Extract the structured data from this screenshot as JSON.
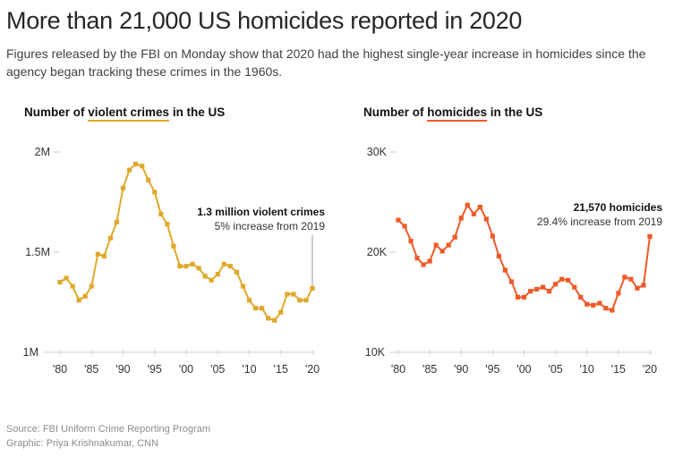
{
  "headline": "More than 21,000 US homicides reported in 2020",
  "subtitle": "Figures released by the FBI on Monday show that 2020 had the highest single-year increase in homicides since the agency began tracking these crimes in the 1960s.",
  "footer": {
    "source": "Source: FBI Uniform Crime Reporting Program",
    "graphic": "Graphic: Priya Krishnakumar, CNN"
  },
  "chart_data": [
    {
      "type": "line",
      "id": "violent",
      "title_parts": [
        "Number of ",
        "violent crimes",
        " in the US"
      ],
      "title": "Number of violent crimes in the US",
      "color": "#e0a92b",
      "xlabel": "",
      "ylabel": "",
      "ylim": [
        1000000,
        2000000
      ],
      "yticks": [
        {
          "value": 2000000,
          "label": "2M"
        },
        {
          "value": 1500000,
          "label": "1.5M"
        },
        {
          "value": 1000000,
          "label": "1M"
        }
      ],
      "xticks": [
        {
          "value": 1980,
          "label": "'80"
        },
        {
          "value": 1985,
          "label": "'85"
        },
        {
          "value": 1990,
          "label": "'90"
        },
        {
          "value": 1995,
          "label": "'95"
        },
        {
          "value": 2000,
          "label": "'00"
        },
        {
          "value": 2005,
          "label": "'05"
        },
        {
          "value": 2010,
          "label": "'10"
        },
        {
          "value": 2015,
          "label": "'15"
        },
        {
          "value": 2020,
          "label": "'20"
        }
      ],
      "xlim": [
        1980,
        2020
      ],
      "grid": false,
      "x": [
        1980,
        1981,
        1982,
        1983,
        1984,
        1985,
        1986,
        1987,
        1988,
        1989,
        1990,
        1991,
        1992,
        1993,
        1994,
        1995,
        1996,
        1997,
        1998,
        1999,
        2000,
        2001,
        2002,
        2003,
        2004,
        2005,
        2006,
        2007,
        2008,
        2009,
        2010,
        2011,
        2012,
        2013,
        2014,
        2015,
        2016,
        2017,
        2018,
        2019,
        2020
      ],
      "values": [
        1350000,
        1370000,
        1330000,
        1260000,
        1280000,
        1330000,
        1490000,
        1480000,
        1570000,
        1650000,
        1820000,
        1910000,
        1940000,
        1930000,
        1860000,
        1800000,
        1690000,
        1640000,
        1530000,
        1430000,
        1430000,
        1440000,
        1420000,
        1380000,
        1360000,
        1390000,
        1440000,
        1430000,
        1400000,
        1330000,
        1260000,
        1220000,
        1220000,
        1170000,
        1160000,
        1200000,
        1290000,
        1290000,
        1260000,
        1260000,
        1320000
      ],
      "annotation": {
        "bold": "1.3 million violent crimes",
        "text": "5% increase from 2019",
        "year": 2020
      }
    },
    {
      "type": "line",
      "id": "homicides",
      "title_parts": [
        "Number of ",
        "homicides",
        " in the US"
      ],
      "title": "Number of homicides in the US",
      "color": "#f05a28",
      "xlabel": "",
      "ylabel": "",
      "ylim": [
        10000,
        30000
      ],
      "yticks": [
        {
          "value": 30000,
          "label": "30K"
        },
        {
          "value": 20000,
          "label": "20K"
        },
        {
          "value": 10000,
          "label": "10K"
        }
      ],
      "xticks": [
        {
          "value": 1980,
          "label": "'80"
        },
        {
          "value": 1985,
          "label": "'85"
        },
        {
          "value": 1990,
          "label": "'90"
        },
        {
          "value": 1995,
          "label": "'95"
        },
        {
          "value": 2000,
          "label": "'00"
        },
        {
          "value": 2005,
          "label": "'05"
        },
        {
          "value": 2010,
          "label": "'10"
        },
        {
          "value": 2015,
          "label": "'15"
        },
        {
          "value": 2020,
          "label": "'20"
        }
      ],
      "xlim": [
        1980,
        2020
      ],
      "grid": false,
      "x": [
        1980,
        1981,
        1982,
        1983,
        1984,
        1985,
        1986,
        1987,
        1988,
        1989,
        1990,
        1991,
        1992,
        1993,
        1994,
        1995,
        1996,
        1997,
        1998,
        1999,
        2000,
        2001,
        2002,
        2003,
        2004,
        2005,
        2006,
        2007,
        2008,
        2009,
        2010,
        2011,
        2012,
        2013,
        2014,
        2015,
        2016,
        2017,
        2018,
        2019,
        2020
      ],
      "values": [
        23200,
        22600,
        21100,
        19400,
        18750,
        19100,
        20700,
        20100,
        20700,
        21500,
        23400,
        24700,
        23800,
        24500,
        23300,
        21600,
        19600,
        18200,
        17050,
        15500,
        15500,
        16100,
        16300,
        16500,
        16100,
        16800,
        17300,
        17200,
        16500,
        15500,
        14800,
        14700,
        14900,
        14400,
        14200,
        15900,
        17500,
        17300,
        16400,
        16700,
        21570
      ],
      "annotation": {
        "bold": "21,570 homicides",
        "text": "29.4% increase from 2019",
        "year": 2020
      }
    }
  ]
}
